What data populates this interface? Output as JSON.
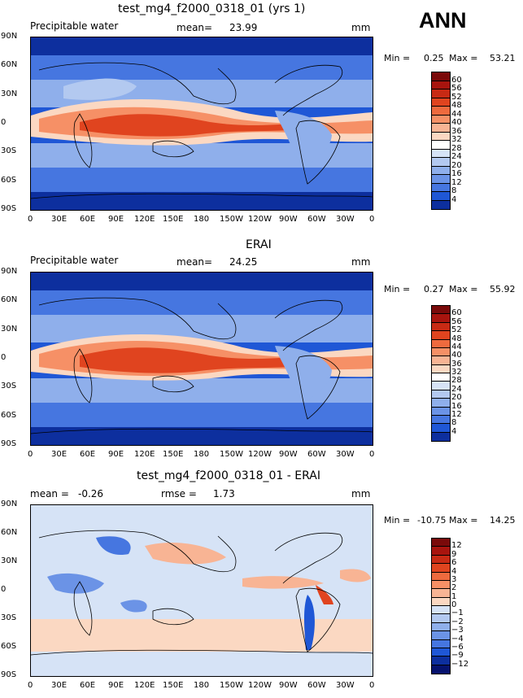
{
  "header": {
    "season": "ANN"
  },
  "panels": [
    {
      "title": "test_mg4_f2000_0318_01 (yrs 1)",
      "left_label": "Precipitable water",
      "mean_label": "mean=",
      "mean_value": "23.99",
      "units": "mm",
      "min_label": "Min =",
      "min_value": "0.25",
      "max_label": "Max =",
      "max_value": "53.21"
    },
    {
      "title": "ERAI",
      "left_label": "Precipitable water",
      "mean_label": "mean=",
      "mean_value": "24.25",
      "units": "mm",
      "min_label": "Min =",
      "min_value": "0.27",
      "max_label": "Max =",
      "max_value": "55.92"
    },
    {
      "title": "test_mg4_f2000_0318_01 - ERAI",
      "mean_label": "mean =",
      "mean_value": "-0.26",
      "rmse_label": "rmse =",
      "rmse_value": "1.73",
      "units": "mm",
      "min_label": "Min =",
      "min_value": "-10.75",
      "max_label": "Max =",
      "max_value": "14.25"
    }
  ],
  "chart_data": [
    {
      "type": "heatmap",
      "title": "test_mg4_f2000_0318_01 (yrs 1)",
      "variable": "Precipitable water",
      "units": "mm",
      "mean": 23.99,
      "min": 0.25,
      "max": 53.21,
      "x_ticks": [
        "0",
        "30E",
        "60E",
        "90E",
        "120E",
        "150E",
        "180",
        "150W",
        "120W",
        "90W",
        "60W",
        "30W",
        "0"
      ],
      "y_ticks": [
        "90N",
        "60N",
        "30N",
        "0",
        "30S",
        "60S",
        "90S"
      ],
      "colorbar_levels": [
        "60",
        "56",
        "52",
        "48",
        "44",
        "40",
        "36",
        "32",
        "28",
        "24",
        "20",
        "16",
        "12",
        "8",
        "4"
      ],
      "colorbar_colors": [
        "#7a0a0a",
        "#a8140e",
        "#c82a14",
        "#e0441f",
        "#ee6a3e",
        "#f69066",
        "#f8b494",
        "#fbd8c2",
        "#ffffff",
        "#d6e3f6",
        "#b3c9f0",
        "#8fafeb",
        "#6b93e6",
        "#4676e0",
        "#1f57d6",
        "#0d2f9e"
      ]
    },
    {
      "type": "heatmap",
      "title": "ERAI",
      "variable": "Precipitable water",
      "units": "mm",
      "mean": 24.25,
      "min": 0.27,
      "max": 55.92,
      "x_ticks": [
        "0",
        "30E",
        "60E",
        "90E",
        "120E",
        "150E",
        "180",
        "150W",
        "120W",
        "90W",
        "60W",
        "30W",
        "0"
      ],
      "y_ticks": [
        "90N",
        "60N",
        "30N",
        "0",
        "30S",
        "60S",
        "90S"
      ],
      "colorbar_levels": [
        "60",
        "56",
        "52",
        "48",
        "44",
        "40",
        "36",
        "32",
        "28",
        "24",
        "20",
        "16",
        "12",
        "8",
        "4"
      ],
      "colorbar_colors": [
        "#7a0a0a",
        "#a8140e",
        "#c82a14",
        "#e0441f",
        "#ee6a3e",
        "#f69066",
        "#f8b494",
        "#fbd8c2",
        "#ffffff",
        "#d6e3f6",
        "#b3c9f0",
        "#8fafeb",
        "#6b93e6",
        "#4676e0",
        "#1f57d6",
        "#0d2f9e"
      ]
    },
    {
      "type": "heatmap",
      "title": "test_mg4_f2000_0318_01 - ERAI",
      "units": "mm",
      "mean": -0.26,
      "rmse": 1.73,
      "min": -10.75,
      "max": 14.25,
      "x_ticks": [
        "0",
        "30E",
        "60E",
        "90E",
        "120E",
        "150E",
        "180",
        "150W",
        "120W",
        "90W",
        "60W",
        "30W",
        "0"
      ],
      "y_ticks": [
        "90N",
        "60N",
        "30N",
        "0",
        "30S",
        "60S",
        "90S"
      ],
      "colorbar_levels": [
        "12",
        "9",
        "6",
        "4",
        "3",
        "2",
        "1",
        "0",
        "−1",
        "−2",
        "−3",
        "−4",
        "−6",
        "−9",
        "−12"
      ],
      "colorbar_colors": [
        "#7a0a0a",
        "#a8140e",
        "#c82a14",
        "#e0441f",
        "#ee6a3e",
        "#f69066",
        "#f8b494",
        "#fbd8c2",
        "#d6e3f6",
        "#b3c9f0",
        "#8fafeb",
        "#6b93e6",
        "#4676e0",
        "#1f57d6",
        "#0d2f9e",
        "#06126e"
      ]
    }
  ]
}
